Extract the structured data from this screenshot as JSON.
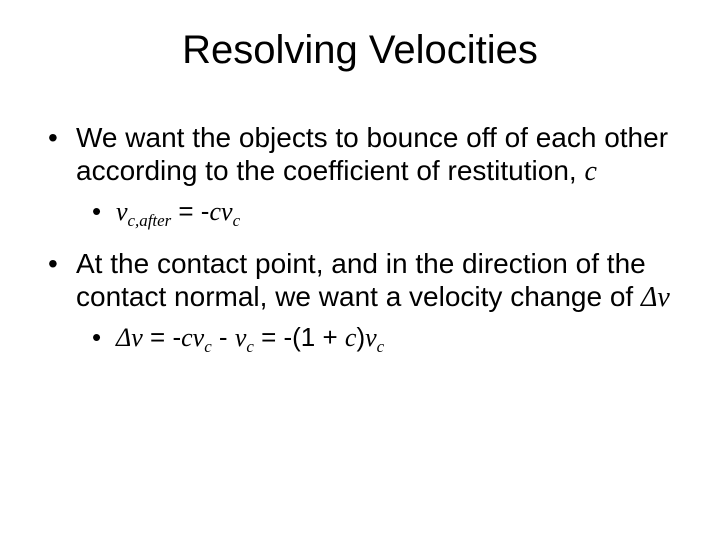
{
  "title": "Resolving Velocities",
  "b1": {
    "pre": "We want the objects to bounce off of each other according to the coefficient of restitution, ",
    "c": "c"
  },
  "eq1": {
    "v": "v",
    "sub1": "c,after",
    "mid": " = -",
    "c": "c",
    "v2": "v",
    "sub2": "c"
  },
  "b2": {
    "pre": "At the contact point, and in the direction of the contact normal, we want a velocity change of ",
    "dv": "Δv"
  },
  "eq2": {
    "dv": "Δv",
    "a": " = -",
    "c1": "c",
    "v1": "v",
    "s1": "c",
    "b": " - ",
    "v2": "v",
    "s2": "c",
    "c": " = -(1 + ",
    "c2": "c",
    "d": ")",
    "v3": "v",
    "s3": "c"
  }
}
